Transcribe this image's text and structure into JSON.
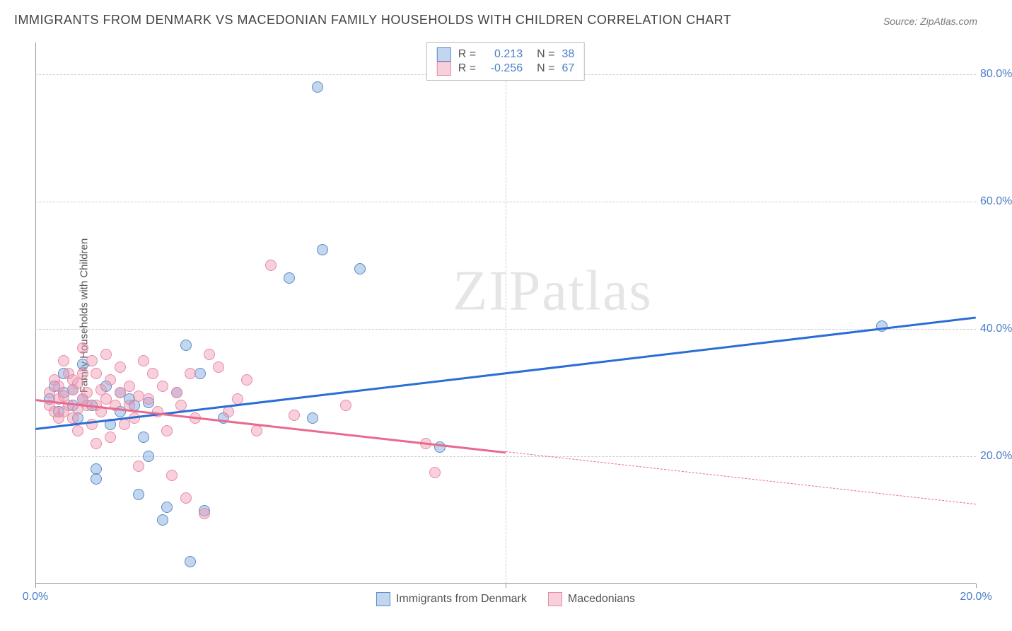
{
  "title": "IMMIGRANTS FROM DENMARK VS MACEDONIAN FAMILY HOUSEHOLDS WITH CHILDREN CORRELATION CHART",
  "source": "Source: ZipAtlas.com",
  "ylabel": "Family Households with Children",
  "watermark": "ZIPatlas",
  "chart": {
    "type": "scatter",
    "xlim": [
      0,
      20
    ],
    "ylim": [
      0,
      85
    ],
    "xticks": [
      0,
      10,
      20
    ],
    "xtick_labels": [
      "0.0%",
      "",
      "20.0%"
    ],
    "yticks": [
      20,
      40,
      60,
      80
    ],
    "ytick_labels": [
      "20.0%",
      "40.0%",
      "60.0%",
      "80.0%"
    ],
    "background_color": "#ffffff",
    "grid_color": "#cccccc",
    "axis_color": "#999999",
    "tick_label_color": "#4a7ec9",
    "marker_radius": 8,
    "marker_border_width": 1.5,
    "series": [
      {
        "name": "Immigrants from Denmark",
        "fill_color": "rgba(120,165,220,0.45)",
        "border_color": "#5a8cc8",
        "trend_color": "#2a6dd4",
        "r": "0.213",
        "n": "38",
        "trend": {
          "x1": 0,
          "y1": 24.5,
          "x2": 20,
          "y2": 42,
          "solid_to_x": 20
        },
        "points": [
          [
            0.3,
            29
          ],
          [
            0.4,
            31
          ],
          [
            0.5,
            27
          ],
          [
            0.6,
            30
          ],
          [
            0.6,
            33
          ],
          [
            0.8,
            28
          ],
          [
            0.8,
            30.5
          ],
          [
            0.9,
            26
          ],
          [
            1.0,
            34.5
          ],
          [
            1.0,
            29
          ],
          [
            1.2,
            28
          ],
          [
            1.3,
            18
          ],
          [
            1.3,
            16.5
          ],
          [
            1.5,
            31
          ],
          [
            1.6,
            25
          ],
          [
            1.8,
            30
          ],
          [
            1.8,
            27
          ],
          [
            2.0,
            29
          ],
          [
            2.1,
            28
          ],
          [
            2.2,
            14
          ],
          [
            2.3,
            23
          ],
          [
            2.4,
            28.5
          ],
          [
            2.4,
            20
          ],
          [
            2.7,
            10
          ],
          [
            2.8,
            12
          ],
          [
            3.0,
            30
          ],
          [
            3.2,
            37.5
          ],
          [
            3.3,
            3.5
          ],
          [
            3.5,
            33
          ],
          [
            3.6,
            11.5
          ],
          [
            4.0,
            26
          ],
          [
            5.4,
            48
          ],
          [
            5.9,
            26
          ],
          [
            6.0,
            78
          ],
          [
            6.1,
            52.5
          ],
          [
            6.9,
            49.5
          ],
          [
            8.6,
            21.5
          ],
          [
            18.0,
            40.5
          ]
        ]
      },
      {
        "name": "Macedonians",
        "fill_color": "rgba(240,150,175,0.45)",
        "border_color": "#e88aa5",
        "trend_color": "#e86a8e",
        "r": "-0.256",
        "n": "67",
        "trend": {
          "x1": 0,
          "y1": 29,
          "x2": 20,
          "y2": 12.5,
          "solid_to_x": 10
        },
        "points": [
          [
            0.3,
            28
          ],
          [
            0.3,
            30
          ],
          [
            0.4,
            27
          ],
          [
            0.4,
            32
          ],
          [
            0.5,
            29
          ],
          [
            0.5,
            31
          ],
          [
            0.5,
            26
          ],
          [
            0.6,
            27
          ],
          [
            0.6,
            29.5
          ],
          [
            0.6,
            35
          ],
          [
            0.7,
            33
          ],
          [
            0.7,
            28
          ],
          [
            0.8,
            30.5
          ],
          [
            0.8,
            32
          ],
          [
            0.8,
            26
          ],
          [
            0.9,
            27.5
          ],
          [
            0.9,
            31.5
          ],
          [
            0.9,
            24
          ],
          [
            1.0,
            29
          ],
          [
            1.0,
            33
          ],
          [
            1.0,
            37
          ],
          [
            1.1,
            28
          ],
          [
            1.1,
            30
          ],
          [
            1.2,
            25
          ],
          [
            1.2,
            35
          ],
          [
            1.3,
            28
          ],
          [
            1.3,
            33
          ],
          [
            1.3,
            22
          ],
          [
            1.4,
            30.5
          ],
          [
            1.4,
            27
          ],
          [
            1.5,
            29
          ],
          [
            1.5,
            36
          ],
          [
            1.6,
            32
          ],
          [
            1.6,
            23
          ],
          [
            1.7,
            28
          ],
          [
            1.8,
            30
          ],
          [
            1.8,
            34
          ],
          [
            1.9,
            25
          ],
          [
            2.0,
            31
          ],
          [
            2.0,
            28
          ],
          [
            2.1,
            26
          ],
          [
            2.2,
            29.5
          ],
          [
            2.2,
            18.5
          ],
          [
            2.3,
            35
          ],
          [
            2.4,
            29
          ],
          [
            2.5,
            33
          ],
          [
            2.6,
            27
          ],
          [
            2.7,
            31
          ],
          [
            2.8,
            24
          ],
          [
            2.9,
            17
          ],
          [
            3.0,
            30
          ],
          [
            3.1,
            28
          ],
          [
            3.2,
            13.5
          ],
          [
            3.3,
            33
          ],
          [
            3.4,
            26
          ],
          [
            3.6,
            11
          ],
          [
            3.7,
            36
          ],
          [
            3.9,
            34
          ],
          [
            4.1,
            27
          ],
          [
            4.3,
            29
          ],
          [
            4.5,
            32
          ],
          [
            4.7,
            24
          ],
          [
            5.0,
            50
          ],
          [
            5.5,
            26.5
          ],
          [
            6.6,
            28
          ],
          [
            8.3,
            22
          ],
          [
            8.5,
            17.5
          ]
        ]
      }
    ],
    "legend_top": {
      "r_label": "R =",
      "n_label": "N ="
    },
    "legend_bottom": [
      {
        "label": "Immigrants from Denmark",
        "fill": "rgba(120,165,220,0.45)",
        "border": "#5a8cc8"
      },
      {
        "label": "Macedonians",
        "fill": "rgba(240,150,175,0.45)",
        "border": "#e88aa5"
      }
    ]
  }
}
